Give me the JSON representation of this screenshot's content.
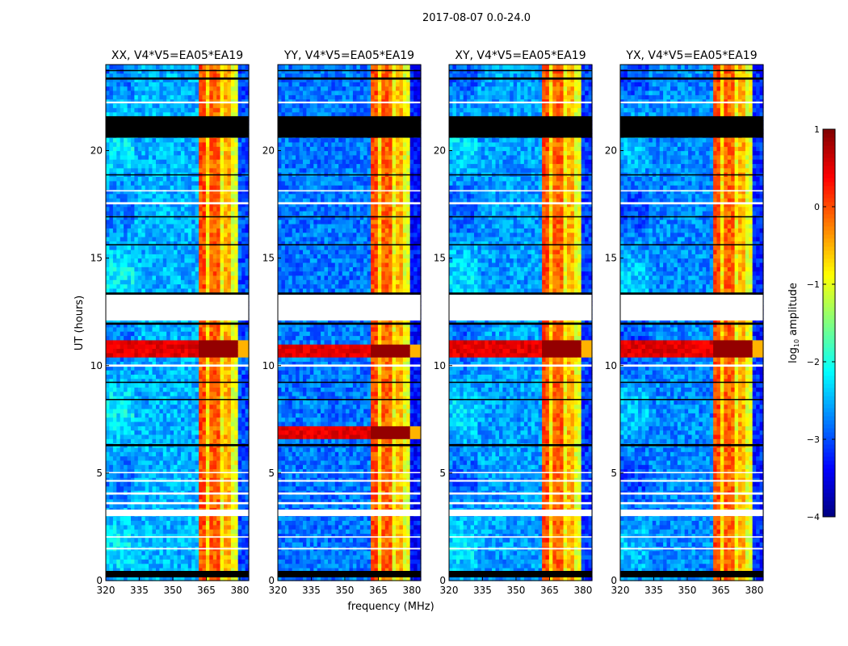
{
  "chart_data": {
    "type": "heatmap",
    "suptitle": "2017-08-07 0.0-24.0",
    "xlabel": "frequency (MHz)",
    "ylabel": "UT (hours)",
    "xlim": [
      320,
      384
    ],
    "ylim": [
      0,
      24
    ],
    "xticks": [
      320,
      335,
      350,
      365,
      380
    ],
    "yticks": [
      0,
      5,
      10,
      15,
      20
    ],
    "colorbar": {
      "label": "log10 amplitude",
      "label_main": "log",
      "label_sub": "10",
      "label_rest": " amplitude",
      "range": [
        -4,
        1
      ],
      "ticks": [
        -4,
        -3,
        -2,
        -1,
        0,
        1
      ],
      "colormap": "jet"
    },
    "panels": [
      {
        "title": "XX, V4*V5=EA05*EA19",
        "background_level": -2.5,
        "strong_rfi_hours": [
          [
            10.3,
            11.2
          ]
        ]
      },
      {
        "title": "YY, V4*V5=EA05*EA19",
        "background_level": -2.8,
        "strong_rfi_hours": [
          [
            10.3,
            11.0
          ],
          [
            6.6,
            7.3
          ]
        ]
      },
      {
        "title": "XY, V4*V5=EA05*EA19",
        "background_level": -2.6,
        "strong_rfi_hours": [
          [
            10.3,
            11.2
          ]
        ]
      },
      {
        "title": "YX, V4*V5=EA05*EA19",
        "background_level": -2.7,
        "strong_rfi_hours": [
          [
            10.4,
            11.1
          ]
        ]
      }
    ],
    "rfi_bands_mhz": [
      {
        "range": [
          361,
          365
        ],
        "level": 0.0
      },
      {
        "range": [
          365,
          366.5
        ],
        "level": -0.8
      },
      {
        "range": [
          366.5,
          371
        ],
        "level": -0.1
      },
      {
        "range": [
          371,
          373
        ],
        "level": -0.9
      },
      {
        "range": [
          373,
          376
        ],
        "level": -0.5
      },
      {
        "range": [
          376,
          380
        ],
        "level": -1.0
      }
    ],
    "missing_hours": [
      [
        12.1,
        13.3
      ],
      [
        3.0,
        3.3
      ],
      [
        3.55,
        3.65
      ],
      [
        4.0,
        4.1
      ],
      [
        4.6,
        4.68
      ],
      [
        1.45,
        1.52
      ],
      [
        2.0,
        2.06
      ],
      [
        9.95,
        10.05
      ],
      [
        17.5,
        17.6
      ],
      [
        18.1,
        18.16
      ],
      [
        22.2,
        22.28
      ],
      [
        5.0,
        5.05
      ]
    ],
    "flagged_hours": [
      [
        20.6,
        21.6
      ],
      [
        0.15,
        0.45
      ],
      [
        6.25,
        6.35
      ],
      [
        11.9,
        12.0
      ],
      [
        23.3,
        23.4
      ],
      [
        23.7,
        23.75
      ],
      [
        18.85,
        18.9
      ],
      [
        16.9,
        16.95
      ],
      [
        15.6,
        15.65
      ],
      [
        13.3,
        13.4
      ],
      [
        9.2,
        9.25
      ],
      [
        8.4,
        8.45
      ]
    ]
  }
}
